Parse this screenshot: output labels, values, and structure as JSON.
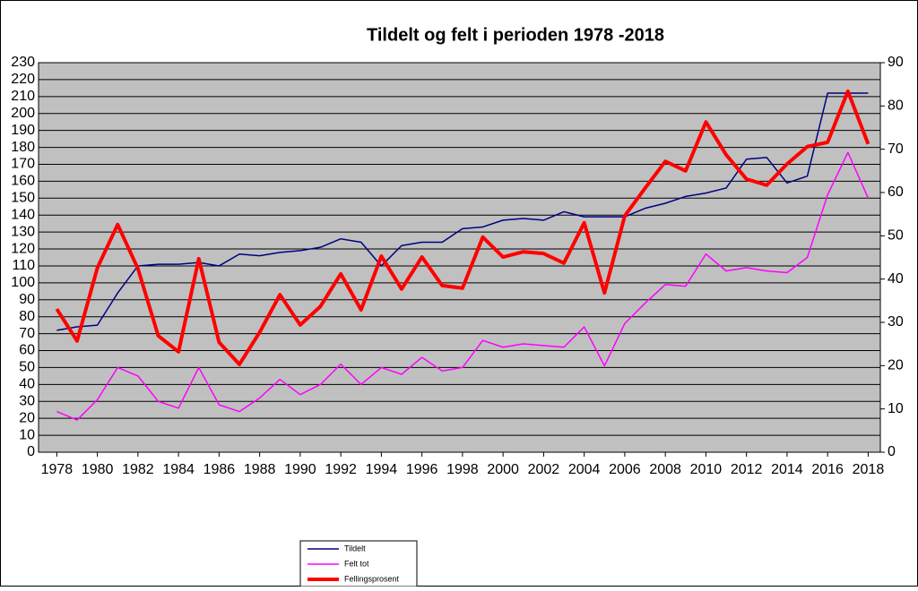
{
  "chart_data": {
    "type": "line",
    "title": "Tildelt og felt i perioden 1978 -2018",
    "x": [
      1978,
      1979,
      1980,
      1981,
      1982,
      1983,
      1984,
      1985,
      1986,
      1987,
      1988,
      1989,
      1990,
      1991,
      1992,
      1993,
      1994,
      1995,
      1996,
      1997,
      1998,
      1999,
      2000,
      2001,
      2002,
      2003,
      2004,
      2005,
      2006,
      2007,
      2008,
      2009,
      2010,
      2011,
      2012,
      2013,
      2014,
      2015,
      2016,
      2017,
      2018
    ],
    "series": [
      {
        "name": "Tildelt",
        "color": "#000080",
        "width": 1.5,
        "values": [
          72,
          74,
          75,
          94,
          110,
          111,
          111,
          112,
          110,
          117,
          116,
          118,
          119,
          121,
          126,
          124,
          110,
          122,
          124,
          124,
          132,
          133,
          137,
          138,
          137,
          142,
          139,
          139,
          139,
          144,
          147,
          151,
          153,
          156,
          173,
          174,
          159,
          163,
          212,
          212,
          212
        ]
      },
      {
        "name": "Felt tot",
        "color": "#ff00ff",
        "width": 1.5,
        "values": [
          24,
          19,
          31,
          50,
          45,
          30,
          26,
          50,
          28,
          24,
          32,
          43,
          34,
          40,
          52,
          40,
          50,
          46,
          56,
          48,
          50,
          66,
          62,
          64,
          63,
          62,
          74,
          51,
          76,
          88,
          99,
          98,
          117,
          107,
          109,
          107,
          106,
          115,
          152,
          177,
          150
        ]
      },
      {
        "name": "Fellingsprosent",
        "color": "#ff0000",
        "width": 4,
        "axis": "y2",
        "values": [
          33.1,
          25.7,
          42.6,
          52.6,
          42.4,
          26.9,
          23.2,
          44.7,
          25.4,
          20.3,
          27.7,
          36.4,
          29.4,
          33.7,
          41.2,
          32.9,
          45.3,
          37.7,
          45.1,
          38.5,
          37.9,
          49.7,
          45.1,
          46.3,
          45.9,
          43.7,
          53.0,
          36.8,
          54.6,
          61.0,
          67.2,
          65.0,
          76.3,
          68.7,
          63.1,
          61.7,
          66.6,
          70.6,
          71.6,
          83.4,
          71.2
        ]
      }
    ],
    "xlim": [
      1977.1,
      2018.6
    ],
    "xticks": [
      1978,
      1980,
      1982,
      1984,
      1986,
      1988,
      1990,
      1992,
      1994,
      1996,
      1998,
      2000,
      2002,
      2004,
      2006,
      2008,
      2010,
      2012,
      2014,
      2016,
      2018
    ],
    "ylim": [
      0,
      230
    ],
    "yticks": [
      0,
      10,
      20,
      30,
      40,
      50,
      60,
      70,
      80,
      90,
      100,
      110,
      120,
      130,
      140,
      150,
      160,
      170,
      180,
      190,
      200,
      210,
      220,
      230
    ],
    "y2lim": [
      0,
      90
    ],
    "y2ticks": [
      0,
      10,
      20,
      30,
      40,
      50,
      60,
      70,
      80,
      90
    ],
    "grid": true,
    "plot_background": "#c0c0c0",
    "legend": "bottom"
  }
}
